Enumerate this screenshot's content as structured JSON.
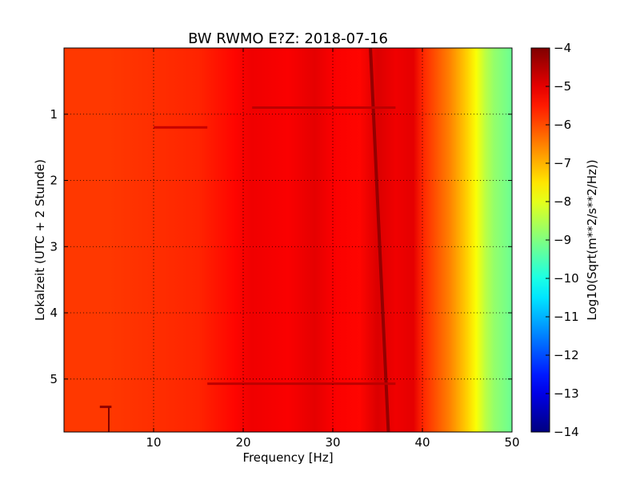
{
  "chart_data": {
    "type": "heatmap",
    "title": "BW RWMO E?Z: 2018-07-16",
    "xlabel": "Frequency [Hz]",
    "ylabel": "Lokalzeit (UTC + 2 Stunde)",
    "xlim": [
      0,
      50
    ],
    "ylim": [
      0,
      5.8
    ],
    "y_inverted": true,
    "grid": true,
    "x_ticks": [
      10,
      20,
      30,
      40,
      50
    ],
    "x_tick_labels": [
      "10",
      "20",
      "30",
      "40",
      "50"
    ],
    "y_ticks": [
      1,
      2,
      3,
      4,
      5
    ],
    "y_tick_labels": [
      "1",
      "2",
      "3",
      "4",
      "5"
    ],
    "colormap": "jet",
    "colorbar": {
      "label": "Log10(Sqrt(m**2/s**2/Hz))",
      "range": [
        -14,
        -4
      ],
      "ticks": [
        -4,
        -5,
        -6,
        -7,
        -8,
        -9,
        -10,
        -11,
        -12,
        -13,
        -14
      ],
      "tick_labels": [
        "−4",
        "−5",
        "−6",
        "−7",
        "−8",
        "−9",
        "−10",
        "−11",
        "−12",
        "−13",
        "−14"
      ]
    },
    "spectral_profile": {
      "freq_hz": [
        0,
        5,
        10,
        15,
        19,
        21,
        25,
        28,
        30,
        33,
        35,
        37,
        39,
        40,
        41,
        42,
        43,
        44,
        45,
        46,
        47,
        48,
        50
      ],
      "log10_psd": [
        -5.8,
        -5.8,
        -5.7,
        -5.6,
        -5.3,
        -5.1,
        -5.2,
        -5.0,
        -5.2,
        -5.3,
        -4.9,
        -5.1,
        -5.0,
        -5.6,
        -5.9,
        -6.2,
        -6.5,
        -6.9,
        -7.3,
        -7.8,
        -8.4,
        -8.8,
        -9.2
      ]
    },
    "features": [
      {
        "type": "drifting-line",
        "freq_start_hz": 34.2,
        "freq_end_hz": 36.2,
        "time_start_h": 0,
        "time_end_h": 5.8,
        "level": -4.2
      },
      {
        "type": "horizontal-burst",
        "time_h": 0.9,
        "freq_range_hz": [
          21,
          37
        ],
        "level": -4.6
      },
      {
        "type": "horizontal-burst",
        "time_h": 1.2,
        "freq_range_hz": [
          10,
          16
        ],
        "level": -4.7
      },
      {
        "type": "horizontal-burst",
        "time_h": 5.07,
        "freq_range_hz": [
          16,
          37
        ],
        "level": -4.6
      },
      {
        "type": "horizontal-burst",
        "time_h": 5.42,
        "freq_range_hz": [
          4,
          5.3
        ],
        "level": -4.2
      },
      {
        "type": "vertical-line",
        "freq_hz": 5,
        "time_range_h": [
          5.42,
          5.8
        ],
        "level": -4.0
      }
    ]
  }
}
